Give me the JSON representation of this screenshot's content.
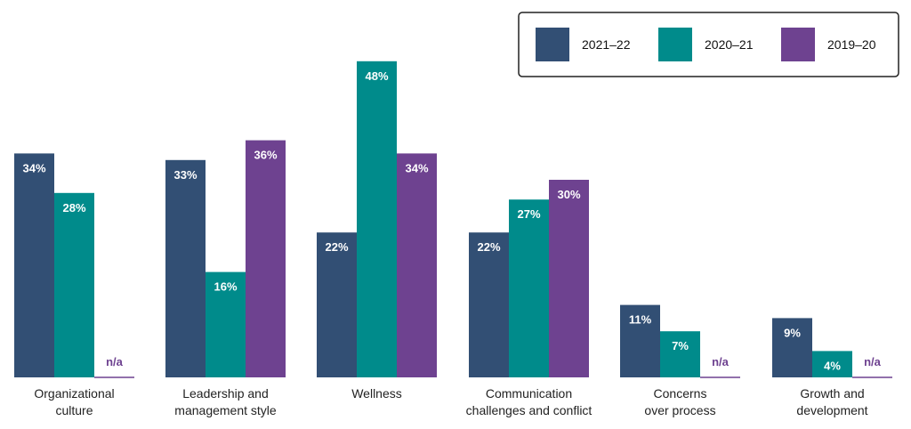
{
  "chart_data": {
    "type": "bar",
    "title": "",
    "xlabel": "",
    "ylabel": "",
    "ylim": [
      0,
      50
    ],
    "grid": false,
    "legend_position": "top-right",
    "categories": [
      [
        "Organizational",
        "culture"
      ],
      [
        "Leadership and",
        "management style"
      ],
      [
        "Wellness"
      ],
      [
        "Communication",
        "challenges and conflict"
      ],
      [
        "Concerns",
        "over process"
      ],
      [
        "Growth and",
        "development"
      ]
    ],
    "series": [
      {
        "name": "2021–22",
        "color": "#324f74",
        "values": [
          34,
          33,
          22,
          22,
          11,
          9
        ],
        "labels": [
          "34%",
          "33%",
          "22%",
          "22%",
          "11%",
          "9%"
        ]
      },
      {
        "name": "2020–21",
        "color": "#008b8b",
        "values": [
          28,
          16,
          48,
          27,
          7,
          4
        ],
        "labels": [
          "28%",
          "16%",
          "48%",
          "27%",
          "7%",
          "4%"
        ]
      },
      {
        "name": "2019–20",
        "color": "#6e4290",
        "values": [
          null,
          36,
          34,
          30,
          null,
          null
        ],
        "labels": [
          "n/a",
          "36%",
          "34%",
          "30%",
          "n/a",
          "n/a"
        ]
      }
    ]
  }
}
